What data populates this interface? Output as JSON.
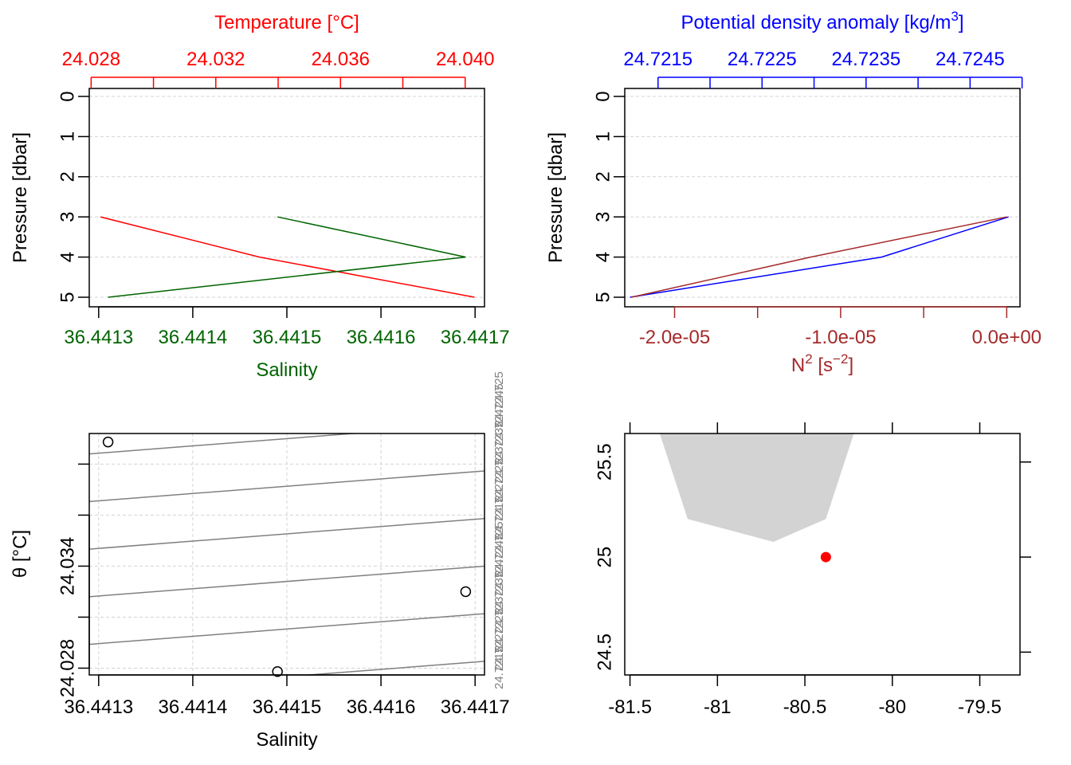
{
  "colors": {
    "temperature": "#ff0000",
    "salinity": "#006400",
    "density": "#0000ff",
    "n2": "#a52a2a",
    "isopycnal": "#808080",
    "grid": "#d3d3d3",
    "land": "#d3d3d3",
    "station": "#ff0000",
    "frame": "#000000"
  },
  "chart_data": [
    {
      "id": "profile-ts",
      "type": "line",
      "y_axis": {
        "label": "Pressure [dbar]",
        "lim": [
          5,
          0
        ],
        "ticks": [
          "0",
          "1",
          "2",
          "3",
          "4",
          "5"
        ]
      },
      "x_top": {
        "label": "Temperature [°C]",
        "lim": [
          24.02794,
          24.04062
        ],
        "ticks": [
          "24.028",
          "24.032",
          "24.036",
          "24.040"
        ]
      },
      "x_bottom": {
        "label": "Salinity",
        "lim": [
          36.44129,
          36.44171
        ],
        "ticks": [
          "36.4413",
          "36.4414",
          "36.4415",
          "36.4416",
          "36.4417"
        ]
      },
      "grid": true,
      "series": [
        {
          "name": "Temperature",
          "axis": "x_top",
          "points": [
            {
              "x": 24.0283,
              "y": 3
            },
            {
              "x": 24.0334,
              "y": 4
            },
            {
              "x": 24.0403,
              "y": 5
            }
          ]
        },
        {
          "name": "Salinity",
          "axis": "x_bottom",
          "points": [
            {
              "x": 36.44149,
              "y": 3
            },
            {
              "x": 36.44169,
              "y": 4
            },
            {
              "x": 36.44131,
              "y": 5
            }
          ]
        }
      ]
    },
    {
      "id": "profile-density-n2",
      "type": "line",
      "y_axis": {
        "label": "Pressure [dbar]",
        "lim": [
          5,
          0
        ],
        "ticks": [
          "0",
          "1",
          "2",
          "3",
          "4",
          "5"
        ]
      },
      "x_top": {
        "label_main": "Potential density anomaly [kg/m",
        "label_sup": "3",
        "label_end": "]",
        "lim": [
          24.72118,
          24.72498
        ],
        "ticks": [
          "24.7215",
          "24.7225",
          "24.7235",
          "24.7245"
        ],
        "minor_ticks": [
          24.7215,
          24.722,
          24.7225,
          24.723,
          24.7235,
          24.724,
          24.7245,
          24.725
        ]
      },
      "x_bottom": {
        "label_main": "N",
        "label_sup1": "2",
        "label_mid": " [s",
        "label_sup2": "−2",
        "label_end": "]",
        "lim": [
          -2.3e-05,
          8e-07
        ],
        "ticks": [
          "-2.0e-05",
          "-1.0e-05",
          "0.0e+00"
        ],
        "tick_values": [
          -2e-05,
          -1e-05,
          0
        ],
        "minor_ticks": [
          -2e-05,
          -1.5e-05,
          -1e-05,
          -5e-06,
          0
        ]
      },
      "grid": true,
      "series": [
        {
          "name": "Density",
          "axis": "x_top",
          "points": [
            {
              "x": 24.72487,
              "y": 3
            },
            {
              "x": 24.72365,
              "y": 4
            },
            {
              "x": 24.72123,
              "y": 5
            }
          ]
        },
        {
          "name": "N2",
          "axis": "x_bottom",
          "points": [
            {
              "x": 0,
              "y": 3
            },
            {
              "x": -1.18e-05,
              "y": 4
            },
            {
              "x": -2.26e-05,
              "y": 5
            }
          ]
        }
      ]
    },
    {
      "id": "ts-diagram",
      "type": "scatter",
      "x_axis": {
        "label": "Salinity",
        "lim": [
          36.44129,
          36.44171
        ],
        "ticks": [
          "36.4413",
          "36.4414",
          "36.4415",
          "36.4416",
          "36.4417"
        ]
      },
      "y_axis": {
        "label": "θ [°C]",
        "lim": [
          24.0276,
          24.0418
        ],
        "ticks": [
          "24.028",
          "24.034"
        ],
        "gridlines": [
          24.028,
          24.031,
          24.034,
          24.037,
          24.04
        ]
      },
      "grid": true,
      "points": [
        {
          "x": 36.44131,
          "y": 24.0413
        },
        {
          "x": 36.44169,
          "y": 24.0325
        },
        {
          "x": 36.44149,
          "y": 24.0278
        }
      ],
      "isopycnals": {
        "values_at_left": [
          24.0406,
          24.0378,
          24.035,
          24.0322,
          24.0294,
          24.0266,
          24.0238,
          24.021
        ],
        "rise_across": 0.0018,
        "labels": [
          "24.7215",
          "24.722",
          "24.7225",
          "24.723",
          "24.7235",
          "24.724",
          "24.7245",
          "24.725",
          "24.7215",
          "24.722",
          "24.7225",
          "24.723",
          "24.7235",
          "24.724",
          "24.7245",
          "24.725"
        ]
      }
    },
    {
      "id": "station-map",
      "type": "map",
      "x_axis": {
        "lim": [
          -81.53,
          -79.27
        ],
        "ticks": [
          "-81.5",
          "-81",
          "-80.5",
          "-80",
          "-79.5"
        ]
      },
      "y_axis": {
        "lim": [
          24.38,
          25.65
        ],
        "ticks": [
          "24.5",
          "25",
          "25.5"
        ]
      },
      "land": [
        {
          "lon": -81.33,
          "lat": 25.65
        },
        {
          "lon": -81.17,
          "lat": 25.2
        },
        {
          "lon": -80.68,
          "lat": 25.08
        },
        {
          "lon": -80.38,
          "lat": 25.2
        },
        {
          "lon": -80.22,
          "lat": 25.65
        }
      ],
      "station": {
        "lon": -80.38,
        "lat": 25.0
      }
    }
  ]
}
